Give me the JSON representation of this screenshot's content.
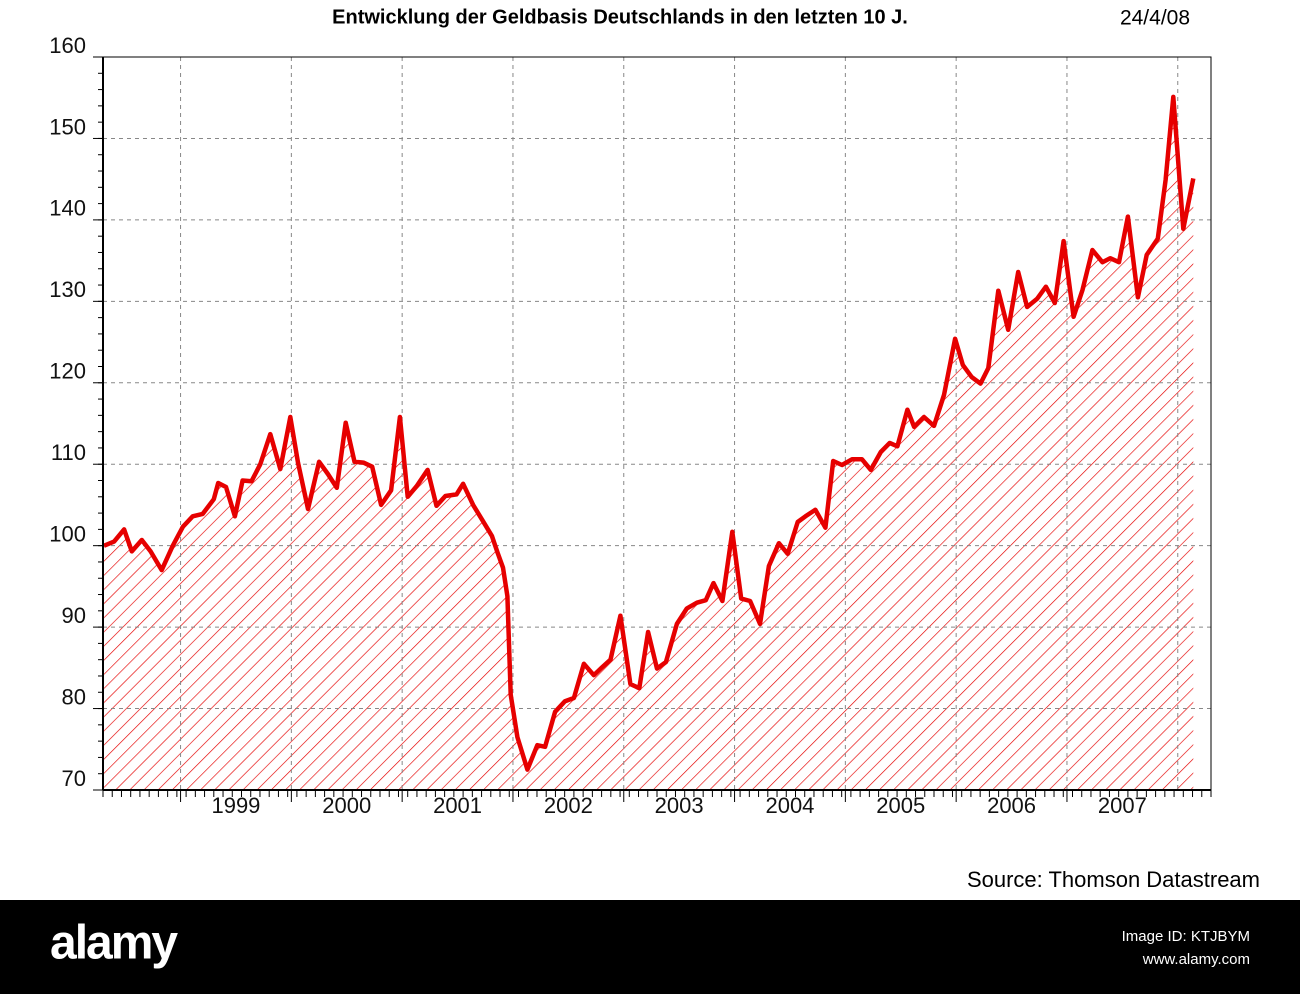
{
  "chart_data": {
    "type": "area",
    "title": "Entwicklung der Geldbasis Deutschlands in den letzten 10 J.",
    "date": "24/4/08",
    "source": "Source: Thomson Datastream",
    "color": "#e60000",
    "hatch": true,
    "grid": true,
    "xlim": [
      1998.3,
      2008.3
    ],
    "ylim": [
      70,
      160
    ],
    "yticks": [
      70,
      80,
      90,
      100,
      110,
      120,
      130,
      140,
      150,
      160
    ],
    "xticks": [
      {
        "value": 1999,
        "label": "1999"
      },
      {
        "value": 2000,
        "label": "2000"
      },
      {
        "value": 2001,
        "label": "2001"
      },
      {
        "value": 2002,
        "label": "2002"
      },
      {
        "value": 2003,
        "label": "2003"
      },
      {
        "value": 2004,
        "label": "2004"
      },
      {
        "value": 2005,
        "label": "2005"
      },
      {
        "value": 2006,
        "label": "2006"
      },
      {
        "value": 2007,
        "label": "2007"
      }
    ],
    "xgrid": [
      1999,
      2000,
      2001,
      2002,
      2003,
      2004,
      2005,
      2006,
      2007,
      2008
    ],
    "x": [
      1998.31,
      1998.4,
      1998.49,
      1998.56,
      1998.65,
      1998.73,
      1998.83,
      1998.93,
      1999.02,
      1999.11,
      1999.2,
      1999.3,
      1999.34,
      1999.41,
      1999.49,
      1999.56,
      1999.64,
      1999.72,
      1999.81,
      1999.9,
      1999.99,
      2000.06,
      2000.15,
      2000.25,
      2000.33,
      2000.41,
      2000.49,
      2000.57,
      2000.65,
      2000.73,
      2000.81,
      2000.9,
      2000.98,
      2001.05,
      2001.13,
      2001.23,
      2001.31,
      2001.39,
      2001.49,
      2001.55,
      2001.64,
      2001.73,
      2001.81,
      2001.86,
      2001.91,
      2001.95,
      2001.98,
      2002.04,
      2002.13,
      2002.22,
      2002.29,
      2002.38,
      2002.47,
      2002.55,
      2002.64,
      2002.73,
      2002.8,
      2002.88,
      2002.97,
      2003.06,
      2003.14,
      2003.22,
      2003.3,
      2003.38,
      2003.48,
      2003.57,
      2003.66,
      2003.74,
      2003.81,
      2003.89,
      2003.98,
      2004.06,
      2004.14,
      2004.23,
      2004.31,
      2004.4,
      2004.48,
      2004.57,
      2004.64,
      2004.73,
      2004.82,
      2004.89,
      2004.97,
      2005.06,
      2005.15,
      2005.23,
      2005.32,
      2005.4,
      2005.47,
      2005.56,
      2005.62,
      2005.71,
      2005.8,
      2005.89,
      2005.99,
      2006.06,
      2006.14,
      2006.22,
      2006.29,
      2006.38,
      2006.47,
      2006.56,
      2006.64,
      2006.73,
      2006.81,
      2006.89,
      2006.97,
      2007.06,
      2007.14,
      2007.23,
      2007.32,
      2007.39,
      2007.47,
      2007.55,
      2007.64,
      2007.72,
      2007.82,
      2007.89,
      2007.96,
      2008.05,
      2008.14
    ],
    "values": [
      100,
      100.5,
      102,
      99.3,
      100.7,
      99.3,
      97,
      100,
      102.3,
      103.6,
      103.9,
      105.7,
      107.7,
      107.2,
      103.6,
      108,
      107.9,
      110,
      113.7,
      109.4,
      115.8,
      110.2,
      104.5,
      110.3,
      108.8,
      107.1,
      115.1,
      110.3,
      110.2,
      109.7,
      105,
      106.8,
      115.8,
      106,
      107.3,
      109.3,
      104.9,
      106.1,
      106.3,
      107.6,
      105,
      103,
      101.2,
      99.2,
      97.3,
      93.8,
      81.7,
      76.5,
      72.5,
      75.5,
      75.3,
      79.6,
      80.9,
      81.3,
      85.5,
      84.1,
      85,
      86,
      91.4,
      83,
      82.5,
      89.4,
      84.9,
      85.7,
      90.4,
      92.3,
      93,
      93.3,
      95.4,
      93.2,
      101.7,
      93.5,
      93.2,
      90.4,
      97.5,
      100.3,
      99,
      102.9,
      103.6,
      104.4,
      102.2,
      110.4,
      109.9,
      110.6,
      110.6,
      109.3,
      111.5,
      112.6,
      112.2,
      116.7,
      114.6,
      115.8,
      114.7,
      118.5,
      125.4,
      122.2,
      120.7,
      119.9,
      121.8,
      131.3,
      126.5,
      133.6,
      129.3,
      130.3,
      131.8,
      129.8,
      137.4,
      128.1,
      131.4,
      136.3,
      134.8,
      135.3,
      134.8,
      140.4,
      130.5,
      135.7,
      137.7,
      144.9,
      155.1,
      138.9,
      145.1
    ]
  },
  "watermark": {
    "brand": "alamy",
    "image_id": "Image ID: KTJBYM",
    "url": "www.alamy.com"
  }
}
